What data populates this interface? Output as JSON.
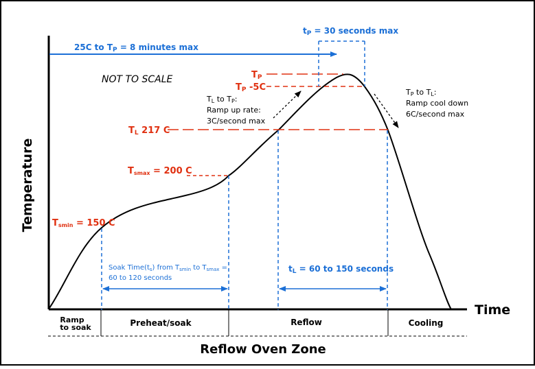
{
  "colors": {
    "red": "#e03010",
    "blue": "#1b6fd6",
    "black": "#000000"
  },
  "axes": {
    "y_label": "Temperature",
    "x_label": "Time"
  },
  "footer": {
    "title": "Reflow Oven Zone"
  },
  "notes": {
    "not_to_scale": "NOT TO SCALE"
  },
  "zones": {
    "ramp_line1": "Ramp",
    "ramp_line2": "to soak",
    "preheat": "Preheat/soak",
    "reflow": "Reflow",
    "cooling": "Cooling"
  },
  "temps": {
    "tp_main": "T",
    "tp_sub": "P",
    "tp5_main": "T",
    "tp5_sub": "P",
    "tp5_suffix": " -5C",
    "tl_main": "T",
    "tl_sub": "L",
    "tl_suffix": " 217 C",
    "tsmax_main": "T",
    "tsmax_sub": "smax",
    "tsmax_suffix": " = 200 C",
    "tsmin_main": "T",
    "tsmin_sub": "smin",
    "tsmin_suffix": " = 150 C"
  },
  "annotations": {
    "ramp25_prefix": "25C to T",
    "ramp25_sub": "P",
    "ramp25_suffix": " = 8 minutes max",
    "tp30_main": "t",
    "tp30_sub": "P",
    "tp30_suffix": " = 30 seconds max",
    "rampup_line1_a": "T",
    "rampup_line1_b": "L",
    "rampup_line1_c": " to T",
    "rampup_line1_d": "P",
    "rampup_line1_e": ":",
    "rampup_line2": "Ramp up rate:",
    "rampup_line3": "3C/second max",
    "cool_line1_a": "T",
    "cool_line1_b": "P",
    "cool_line1_c": " to T",
    "cool_line1_d": "L",
    "cool_line1_e": ":",
    "cool_line2": "Ramp cool down",
    "cool_line3": "6C/second max",
    "soak_line1_a": "Soak Time(t",
    "soak_line1_b": "s",
    "soak_line1_c": ") from T",
    "soak_line1_d": "smin",
    "soak_line1_e": " to T",
    "soak_line1_f": "smax",
    "soak_line1_g": " =",
    "soak_line2": "60 to 120 seconds",
    "tl_time_main": "t",
    "tl_time_sub": "L",
    "tl_time_suffix": " = 60 to 150 seconds"
  }
}
